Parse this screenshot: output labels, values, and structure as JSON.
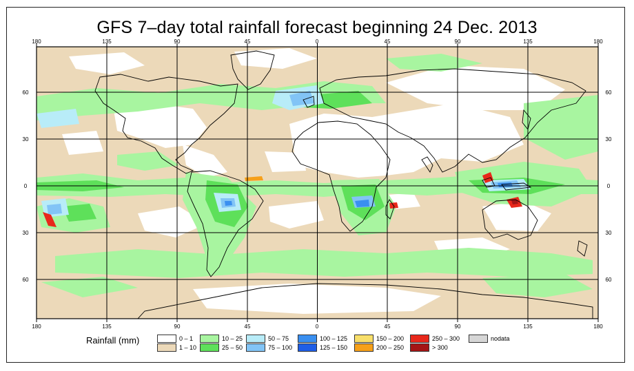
{
  "title": "GFS 7–day total rainfall forecast beginning 24 Dec. 2013",
  "longitude_labels": [
    "180",
    "135",
    "90",
    "45",
    "0",
    "45",
    "90",
    "135",
    "180"
  ],
  "latitude_labels": [
    "60",
    "30",
    "0",
    "30",
    "60"
  ],
  "legend": {
    "title": "Rainfall (mm)",
    "classes": [
      {
        "label": "0 – 1",
        "color": "#ffffff"
      },
      {
        "label": "1 – 10",
        "color": "#ecd9b9"
      },
      {
        "label": "10 – 25",
        "color": "#a8f5a0"
      },
      {
        "label": "25 – 50",
        "color": "#5ee05a"
      },
      {
        "label": "50 – 75",
        "color": "#b8ecf8"
      },
      {
        "label": "75 – 100",
        "color": "#82c4f6"
      },
      {
        "label": "100 – 125",
        "color": "#3a8ff0"
      },
      {
        "label": "125 – 150",
        "color": "#1f5ee6"
      },
      {
        "label": "150 – 200",
        "color": "#f8df6a"
      },
      {
        "label": "200 – 250",
        "color": "#f6a019"
      },
      {
        "label": "250 – 300",
        "color": "#e8281b"
      },
      {
        "label": "> 300",
        "color": "#a41515"
      },
      {
        "label": "nodata",
        "color": "#d6d6d6"
      }
    ]
  }
}
